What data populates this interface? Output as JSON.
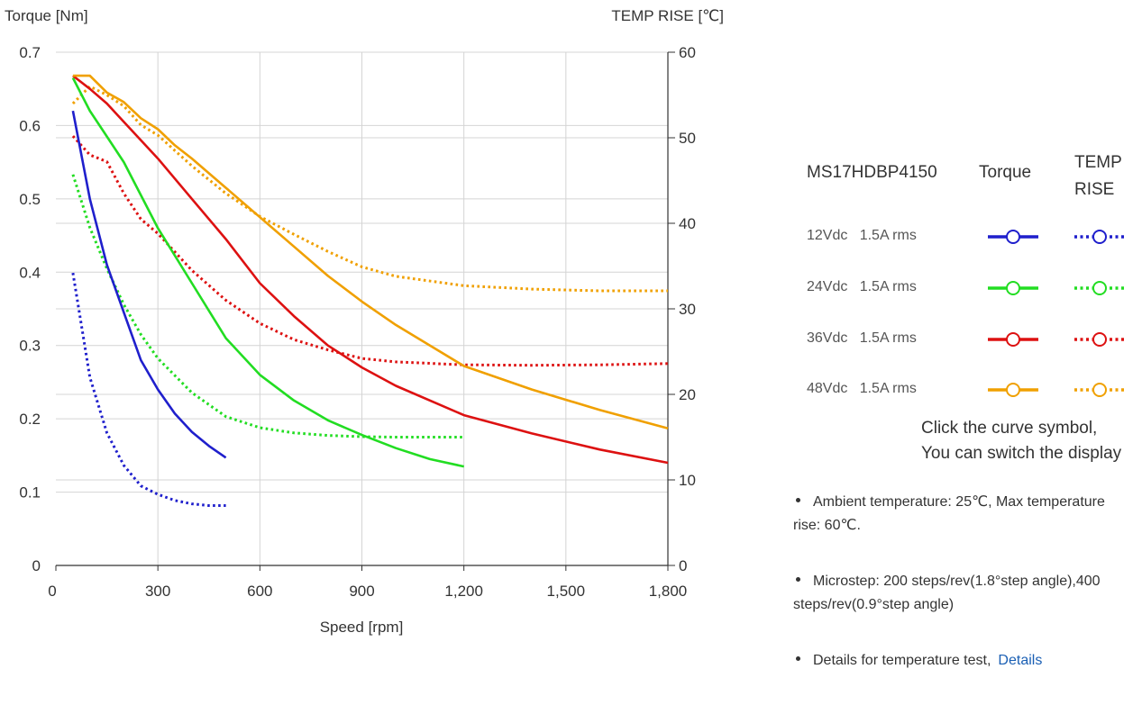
{
  "chart_data": {
    "type": "line",
    "x_axis": {
      "label": "Speed [rpm]",
      "range": [
        0,
        1800
      ],
      "ticks": [
        "0",
        "300",
        "600",
        "900",
        "1,200",
        "1,500",
        "1,800"
      ]
    },
    "y_axis_left": {
      "label": "Torque  [Nm]",
      "range": [
        0,
        0.7
      ],
      "ticks": [
        "0",
        "0.1",
        "0.2",
        "0.3",
        "0.4",
        "0.5",
        "0.6",
        "0.7"
      ]
    },
    "y_axis_right": {
      "label": "TEMP RISE [℃]",
      "range": [
        0,
        60
      ],
      "ticks": [
        "0",
        "10",
        "20",
        "30",
        "40",
        "50",
        "60"
      ]
    },
    "grid": true,
    "torque_series": [
      {
        "name": "12Vdc   1.5A rms",
        "color": "#1f1fcc",
        "x": [
          50,
          100,
          150,
          200,
          250,
          300,
          350,
          400,
          450,
          500
        ],
        "y": [
          0.62,
          0.5,
          0.41,
          0.345,
          0.28,
          0.24,
          0.207,
          0.182,
          0.163,
          0.147
        ]
      },
      {
        "name": "24Vdc   1.5A rms",
        "color": "#22dd22",
        "x": [
          50,
          100,
          150,
          200,
          300,
          400,
          500,
          600,
          700,
          800,
          900,
          1000,
          1100,
          1200
        ],
        "y": [
          0.665,
          0.62,
          0.585,
          0.55,
          0.46,
          0.385,
          0.31,
          0.26,
          0.225,
          0.198,
          0.178,
          0.16,
          0.145,
          0.135
        ]
      },
      {
        "name": "36Vdc   1.5A rms",
        "color": "#dd1111",
        "x": [
          50,
          100,
          150,
          200,
          300,
          400,
          500,
          600,
          700,
          800,
          900,
          1000,
          1200,
          1400,
          1600,
          1800
        ],
        "y": [
          0.668,
          0.65,
          0.63,
          0.605,
          0.555,
          0.5,
          0.445,
          0.385,
          0.34,
          0.3,
          0.27,
          0.245,
          0.205,
          0.18,
          0.158,
          0.14
        ]
      },
      {
        "name": "48Vdc   1.5A rms",
        "color": "#f0a000",
        "x": [
          50,
          100,
          150,
          200,
          250,
          300,
          350,
          400,
          500,
          600,
          700,
          800,
          900,
          1000,
          1200,
          1400,
          1600,
          1800
        ],
        "y": [
          0.668,
          0.668,
          0.645,
          0.632,
          0.61,
          0.595,
          0.573,
          0.555,
          0.515,
          0.475,
          0.435,
          0.395,
          0.36,
          0.328,
          0.272,
          0.24,
          0.212,
          0.187
        ]
      }
    ],
    "temp_series": [
      {
        "name": "12Vdc   1.5A rms",
        "color": "#1f1fcc",
        "x": [
          50,
          100,
          150,
          200,
          250,
          300,
          350,
          400,
          450,
          500
        ],
        "y": [
          34.2,
          22,
          15.5,
          11.7,
          9.3,
          8.3,
          7.6,
          7.2,
          7.0,
          7.0
        ]
      },
      {
        "name": "24Vdc   1.5A rms",
        "color": "#22dd22",
        "x": [
          50,
          100,
          150,
          200,
          250,
          300,
          400,
          500,
          600,
          700,
          800,
          900,
          1000,
          1100,
          1200
        ],
        "y": [
          45.7,
          39.5,
          34.7,
          30.5,
          27,
          24.2,
          20.2,
          17.4,
          16.1,
          15.5,
          15.2,
          15.05,
          15.0,
          15.0,
          15.0
        ]
      },
      {
        "name": "36Vdc   1.5A rms",
        "color": "#dd1111",
        "x": [
          50,
          100,
          150,
          200,
          250,
          300,
          400,
          500,
          600,
          700,
          800,
          900,
          1000,
          1200,
          1400,
          1600,
          1800
        ],
        "y": [
          50.2,
          48,
          47.2,
          43.5,
          40.5,
          38.8,
          34.5,
          31.0,
          28.3,
          26.4,
          25.2,
          24.2,
          23.8,
          23.45,
          23.4,
          23.45,
          23.6
        ]
      },
      {
        "name": "48Vdc   1.5A rms",
        "color": "#f0a000",
        "x": [
          50,
          100,
          150,
          200,
          250,
          300,
          400,
          500,
          600,
          700,
          800,
          900,
          1000,
          1200,
          1400,
          1600,
          1800
        ],
        "y": [
          54,
          56,
          55,
          53.7,
          51.5,
          50.3,
          46.7,
          43.5,
          40.8,
          38.7,
          36.7,
          34.9,
          33.8,
          32.7,
          32.3,
          32.1,
          32.1
        ]
      }
    ]
  },
  "legend": {
    "title": "MS17HDBP4150",
    "torque_header": "Torque",
    "temp_header": "TEMP RISE",
    "rows": [
      {
        "label": "12Vdc   1.5A rms",
        "color": "#1f1fcc"
      },
      {
        "label": "24Vdc   1.5A rms",
        "color": "#22dd22"
      },
      {
        "label": "36Vdc   1.5A rms",
        "color": "#dd1111"
      },
      {
        "label": "48Vdc   1.5A rms",
        "color": "#f0a000"
      }
    ]
  },
  "hint": {
    "line1": "Click the curve symbol,",
    "line2": "You can switch the display"
  },
  "notes": [
    {
      "text": "Ambient temperature: 25℃,  Max temperature rise: 60℃."
    },
    {
      "text": "Microstep: 200 steps/rev(1.8°step angle),400 steps/rev(0.9°step angle)"
    },
    {
      "text": "Details for temperature test,",
      "link": "Details"
    }
  ]
}
